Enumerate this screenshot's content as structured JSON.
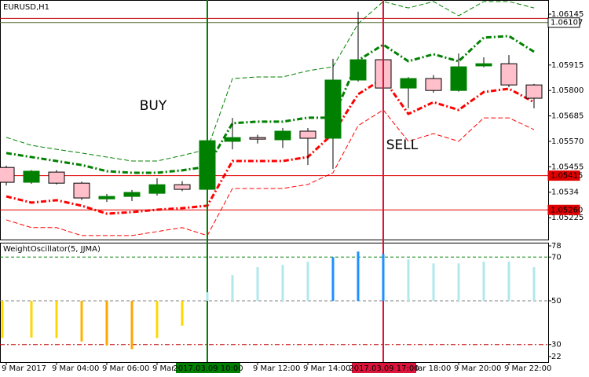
{
  "chart_data": [
    {
      "type": "candlestick",
      "title": "EURUSD,H1",
      "categories": [
        "9 Mar 2017",
        null,
        "9 Mar 04:00",
        null,
        "9 Mar 06:00",
        null,
        "9 Mar 08:00",
        null,
        null,
        null,
        "9 Mar 12:00",
        null,
        "9 Mar 14:00",
        null,
        null,
        null,
        "9 Mar 18:00",
        null,
        "9 Mar 20:00",
        null,
        "9 Mar 22:00",
        null
      ],
      "open": [
        1.05452,
        1.05385,
        1.05431,
        1.05381,
        1.0531,
        1.05321,
        1.05335,
        1.05374,
        1.05353,
        1.0557,
        1.05587,
        1.05577,
        1.05616,
        1.05584,
        1.05847,
        1.05939,
        1.05811,
        1.05854,
        1.058,
        1.05911,
        1.05921,
        1.05825
      ],
      "high": [
        1.0546,
        1.0544,
        1.0544,
        1.05388,
        1.05332,
        1.0535,
        1.05403,
        1.0539,
        1.05587,
        1.05676,
        1.056,
        1.0563,
        1.0563,
        1.05943,
        1.06156,
        1.0596,
        1.0586,
        1.0587,
        1.05967,
        1.0595,
        1.0596,
        1.0583
      ],
      "low": [
        1.0537,
        1.05378,
        1.05375,
        1.05305,
        1.05296,
        1.053,
        1.05325,
        1.05345,
        1.05303,
        1.05534,
        1.0556,
        1.0554,
        1.05463,
        1.05445,
        1.0584,
        1.0579,
        1.0572,
        1.0579,
        1.05795,
        1.05905,
        1.05815,
        1.05719
      ],
      "close": [
        1.05385,
        1.05435,
        1.05381,
        1.05314,
        1.05321,
        1.05339,
        1.05374,
        1.05353,
        1.05573,
        1.05587,
        1.0558,
        1.05616,
        1.05584,
        1.05847,
        1.05939,
        1.05811,
        1.05854,
        1.058,
        1.05907,
        1.05921,
        1.05825,
        1.05765
      ],
      "up_color": "#008000",
      "down_color": "#ffc0cb",
      "bands": [
        {
          "color": "#008000",
          "style": "thin",
          "values": [
            1.05588,
            1.05552,
            1.05534,
            1.05517,
            1.05499,
            1.05481,
            1.05481,
            1.05506,
            1.05534,
            1.05854,
            1.05861,
            1.05861,
            1.05889,
            1.05907,
            1.06102,
            1.06202,
            1.06173,
            1.06202,
            1.06138,
            1.06202,
            1.06202,
            1.06173
          ]
        },
        {
          "color": "#008000",
          "style": "thick",
          "values": [
            1.05517,
            1.05499,
            1.05481,
            1.05463,
            1.05435,
            1.05428,
            1.05428,
            1.05439,
            1.05456,
            1.05652,
            1.05659,
            1.05659,
            1.05677,
            1.05677,
            1.05936,
            1.06007,
            1.05932,
            1.05964,
            1.05932,
            1.06039,
            1.06046,
            1.05975
          ]
        },
        {
          "color": "#ff0000",
          "style": "thick",
          "values": [
            1.05321,
            1.05293,
            1.05304,
            1.05279,
            1.05243,
            1.0525,
            1.05261,
            1.05268,
            1.05279,
            1.05481,
            1.05481,
            1.05481,
            1.05499,
            1.05605,
            1.05783,
            1.05854,
            1.05694,
            1.05747,
            1.05712,
            1.05793,
            1.05808,
            1.05747
          ]
        },
        {
          "color": "#ff0000",
          "style": "thin",
          "values": [
            1.05215,
            1.0518,
            1.0518,
            1.05144,
            1.05144,
            1.05144,
            1.05162,
            1.0518,
            1.05144,
            1.05357,
            1.05357,
            1.05357,
            1.05375,
            1.05428,
            1.05641,
            1.05712,
            1.0557,
            1.05605,
            1.0557,
            1.05676,
            1.05676,
            1.05623
          ]
        }
      ],
      "hlines": [
        {
          "value": 1.06126,
          "color": "#c00000"
        },
        {
          "value": 1.06107,
          "color": "#556b2f"
        },
        {
          "value": 1.05415,
          "color": "#e00000"
        },
        {
          "value": 1.0526,
          "label": "1.05260",
          "color": "#e00000"
        }
      ],
      "vlines": [
        {
          "candle": 8,
          "label": "2017.03.09 10:00",
          "color": "#008000"
        },
        {
          "candle": 15,
          "label": "2017.03.09 17:00",
          "color": "#dc143c"
        }
      ],
      "annotations": [
        {
          "text": "BUY",
          "color": "#008000"
        },
        {
          "text": "SELL",
          "color": "#dc143c"
        }
      ],
      "ylim": [
        1.05126,
        1.06209
      ],
      "yticks": [
        1.06145,
        1.05915,
        {
          "value": 1.058,
          "label": "1.05800"
        },
        1.05685,
        {
          "value": 1.0557,
          "label": "1.05570"
        },
        1.05455,
        1.0534,
        1.05225
      ]
    },
    {
      "type": "bar",
      "title": "WeightOscillator(5, JJMA)",
      "values": [
        33,
        33.2,
        33,
        31.4,
        29.6,
        27.9,
        33,
        38.6,
        53.9,
        61.8,
        65.4,
        66.4,
        67.9,
        70,
        72.5,
        71.4,
        68.9,
        67.1,
        67.1,
        67.9,
        67.9,
        65.4
      ],
      "colors": [
        "#ffd700",
        "#ffd700",
        "#ffd700",
        "#ffb300",
        "#ffa500",
        "#ffa500",
        "#ffd700",
        "#ffd700",
        "#b0e8ec",
        "#b0e8ec",
        "#b0e8ec",
        "#b0e8ec",
        "#b0e8ec",
        "#1e90ff",
        "#1e90ff",
        "#1e90ff",
        "#b0e8ec",
        "#b0e8ec",
        "#b0e8ec",
        "#b0e8ec",
        "#b0e8ec",
        "#b0e8ec"
      ],
      "baseline": 50,
      "levels": [
        {
          "value": 70,
          "color": "#008000"
        },
        {
          "value": 50,
          "color": "#808080"
        },
        {
          "value": 30,
          "color": "#c00000"
        }
      ],
      "ylim": [
        22,
        78
      ],
      "yticks": [
        78,
        70,
        50,
        30,
        22
      ]
    }
  ]
}
